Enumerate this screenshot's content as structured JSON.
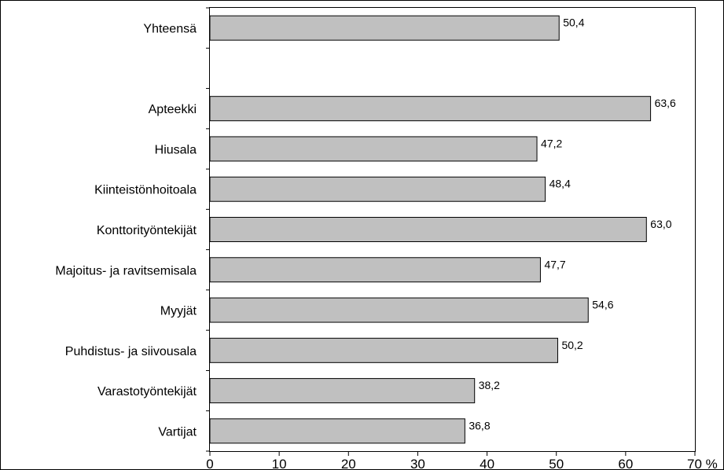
{
  "chart_data": {
    "type": "bar",
    "orientation": "horizontal",
    "categories": [
      "Yhteensä",
      "",
      "Apteekki",
      "Hiusala",
      "Kiinteistönhoitoala",
      "Konttorityöntekijät",
      "Majoitus- ja ravitsemisala",
      "Myyjät",
      "Puhdistus- ja siivousala",
      "Varastotyöntekijät",
      "Vartijat"
    ],
    "values": [
      50.4,
      null,
      63.6,
      47.2,
      48.4,
      63.0,
      47.7,
      54.6,
      50.2,
      38.2,
      36.8
    ],
    "data_labels": [
      "50,4",
      "",
      "63,6",
      "47,2",
      "48,4",
      "63,0",
      "47,7",
      "54,6",
      "50,2",
      "38,2",
      "36,8"
    ],
    "x_ticks": [
      0,
      10,
      20,
      30,
      40,
      50,
      60,
      70
    ],
    "x_tick_labels": [
      "0",
      "10",
      "20",
      "30",
      "40",
      "50",
      "60",
      "70 %"
    ],
    "xlim": [
      0,
      70
    ],
    "title": "",
    "xlabel": "",
    "ylabel": "",
    "grid": false,
    "legend": "none",
    "colors": {
      "bar_fill": "#c0c0c0",
      "bar_stroke": "#000000",
      "background": "#ffffff"
    }
  }
}
